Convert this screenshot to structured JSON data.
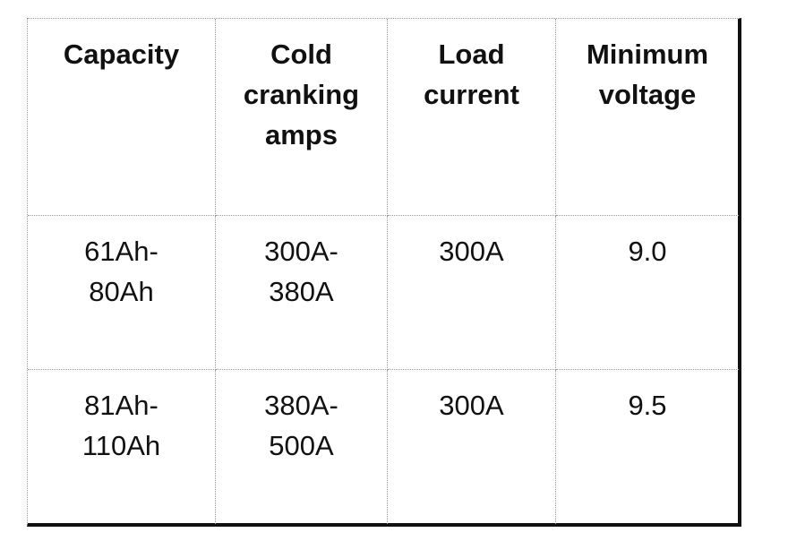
{
  "table": {
    "header": [
      [
        "Capacity"
      ],
      [
        "Cold",
        "cranking",
        "amps"
      ],
      [
        "Load",
        "current"
      ],
      [
        "Minimum",
        "voltage"
      ]
    ],
    "rows": [
      [
        [
          "61Ah-",
          "80Ah"
        ],
        [
          "300A-",
          "380A"
        ],
        [
          "300A"
        ],
        [
          "9.0"
        ]
      ],
      [
        [
          "81Ah-",
          "110Ah"
        ],
        [
          "380A-",
          "500A"
        ],
        [
          "300A"
        ],
        [
          "9.5"
        ]
      ]
    ]
  }
}
